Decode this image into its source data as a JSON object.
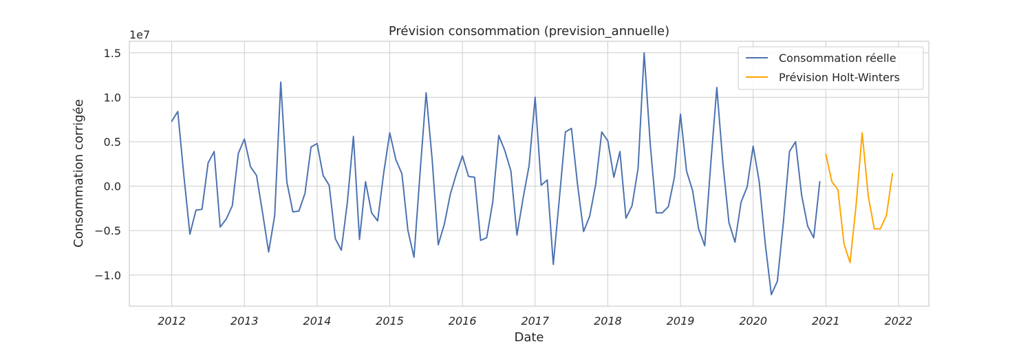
{
  "chart_data": {
    "type": "line",
    "title": "Prévision consommation (prevision_annuelle)",
    "xlabel": "Date",
    "ylabel": "Consommation corrigée",
    "y_offset_label": "1e7",
    "x_ticks": [
      "2012",
      "2013",
      "2014",
      "2015",
      "2016",
      "2017",
      "2018",
      "2019",
      "2020",
      "2021",
      "2022"
    ],
    "y_ticks": [
      "−1.0",
      "−0.5",
      "0.0",
      "0.5",
      "1.0",
      "1.5"
    ],
    "y_tick_values": [
      -10000000,
      -5000000,
      0,
      5000000,
      10000000,
      15000000
    ],
    "xlim": [
      "2011-06",
      "2022-06"
    ],
    "ylim": [
      -13500000,
      16300000
    ],
    "grid": true,
    "legend_position": "top-right",
    "series": [
      {
        "name": "Consommation réelle",
        "color": "#4c72b0",
        "x": [
          "2012-01",
          "2012-02",
          "2012-03",
          "2012-04",
          "2012-05",
          "2012-06",
          "2012-07",
          "2012-08",
          "2012-09",
          "2012-10",
          "2012-11",
          "2012-12",
          "2013-01",
          "2013-02",
          "2013-03",
          "2013-04",
          "2013-05",
          "2013-06",
          "2013-07",
          "2013-08",
          "2013-09",
          "2013-10",
          "2013-11",
          "2013-12",
          "2014-01",
          "2014-02",
          "2014-03",
          "2014-04",
          "2014-05",
          "2014-06",
          "2014-07",
          "2014-08",
          "2014-09",
          "2014-10",
          "2014-11",
          "2014-12",
          "2015-01",
          "2015-02",
          "2015-03",
          "2015-04",
          "2015-05",
          "2015-06",
          "2015-07",
          "2015-08",
          "2015-09",
          "2015-10",
          "2015-11",
          "2015-12",
          "2016-01",
          "2016-02",
          "2016-03",
          "2016-04",
          "2016-05",
          "2016-06",
          "2016-07",
          "2016-08",
          "2016-09",
          "2016-10",
          "2016-11",
          "2016-12",
          "2017-01",
          "2017-02",
          "2017-03",
          "2017-04",
          "2017-05",
          "2017-06",
          "2017-07",
          "2017-08",
          "2017-09",
          "2017-10",
          "2017-11",
          "2017-12",
          "2018-01",
          "2018-02",
          "2018-03",
          "2018-04",
          "2018-05",
          "2018-06",
          "2018-07",
          "2018-08",
          "2018-09",
          "2018-10",
          "2018-11",
          "2018-12",
          "2019-01",
          "2019-02",
          "2019-03",
          "2019-04",
          "2019-05",
          "2019-06",
          "2019-07",
          "2019-08",
          "2019-09",
          "2019-10",
          "2019-11",
          "2019-12",
          "2020-01",
          "2020-02",
          "2020-03",
          "2020-04",
          "2020-05",
          "2020-06",
          "2020-07",
          "2020-08",
          "2020-09",
          "2020-10",
          "2020-11",
          "2020-12"
        ],
        "values": [
          7300000,
          8400000,
          1200000,
          -5400000,
          -2700000,
          -2600000,
          2600000,
          3900000,
          -4600000,
          -3700000,
          -2200000,
          3700000,
          5300000,
          2200000,
          1200000,
          -3000000,
          -7400000,
          -3300000,
          11700000,
          500000,
          -2900000,
          -2800000,
          -800000,
          4400000,
          4800000,
          1200000,
          100000,
          -5900000,
          -7200000,
          -1800000,
          5600000,
          -6000000,
          500000,
          -3000000,
          -3900000,
          1500000,
          6000000,
          3000000,
          1400000,
          -5000000,
          -8000000,
          1500000,
          10500000,
          3000000,
          -6600000,
          -4300000,
          -900000,
          1400000,
          3400000,
          1100000,
          1000000,
          -6100000,
          -5800000,
          -1800000,
          5700000,
          4000000,
          1700000,
          -5500000,
          -1400000,
          2300000,
          10000000,
          100000,
          700000,
          -8800000,
          -1400000,
          6100000,
          6500000,
          200000,
          -5100000,
          -3400000,
          200000,
          6100000,
          5100000,
          1000000,
          3900000,
          -3600000,
          -2200000,
          2000000,
          15000000,
          4800000,
          -3000000,
          -3000000,
          -2300000,
          1000000,
          8100000,
          1700000,
          -500000,
          -4800000,
          -6700000,
          2500000,
          11100000,
          2600000,
          -4100000,
          -6300000,
          -1800000,
          -100000,
          4500000,
          500000,
          -6500000,
          -12200000,
          -10700000,
          -4000000,
          3900000,
          5000000,
          -1000000,
          -4500000,
          -5800000,
          500000
        ]
      },
      {
        "name": "Prévision Holt-Winters",
        "color": "#ffa500",
        "x": [
          "2021-01",
          "2021-02",
          "2021-03",
          "2021-04",
          "2021-05",
          "2021-06",
          "2021-07",
          "2021-08",
          "2021-09",
          "2021-10",
          "2021-11",
          "2021-12"
        ],
        "values": [
          3600000,
          500000,
          -400000,
          -6500000,
          -8600000,
          -2100000,
          6000000,
          -1100000,
          -4800000,
          -4800000,
          -3300000,
          1400000
        ]
      }
    ]
  }
}
